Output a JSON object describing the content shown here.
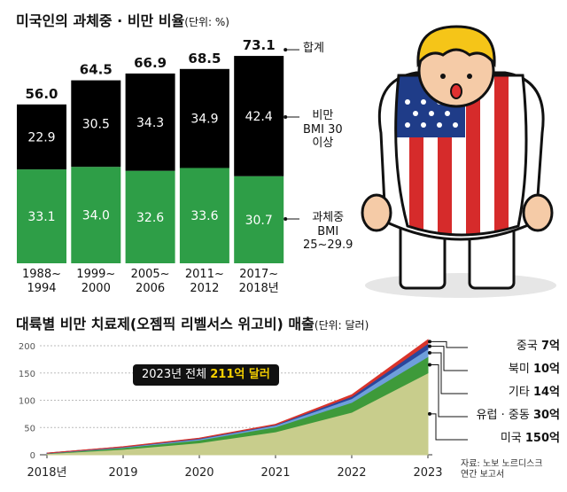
{
  "chart_data": [
    {
      "type": "bar",
      "stacked": true,
      "title": "미국인의 과체중 · 비만 비율",
      "unit": "(단위: %)",
      "categories": [
        "1988~\n1994",
        "1999~\n2000",
        "2005~\n2006",
        "2011~\n2012",
        "2017~\n2018년"
      ],
      "series": [
        {
          "name": "과체중\nBMI\n25~29.9",
          "color": "#2e9e47",
          "values": [
            33.1,
            34.0,
            32.6,
            33.6,
            30.7
          ],
          "value_labels": [
            "33.1",
            "34.0",
            "32.6",
            "33.6",
            "30.7"
          ]
        },
        {
          "name": "비만\nBMI 30\n이상",
          "color": "#000000",
          "values": [
            22.9,
            30.5,
            34.3,
            34.9,
            42.4
          ],
          "value_labels": [
            "22.9",
            "30.5",
            "34.3",
            "34.9",
            "42.4"
          ]
        }
      ],
      "totals": {
        "name": "합계",
        "values": [
          56.0,
          64.5,
          66.9,
          68.5,
          73.1
        ],
        "value_labels": [
          "56.0",
          "64.5",
          "66.9",
          "68.5",
          "73.1"
        ]
      }
    },
    {
      "type": "area",
      "stacked": true,
      "title": "대륙별 비만 치료제(오젬픽 리벨서스 위고비) 매출",
      "unit": "(단위: 달러)",
      "x": [
        2018,
        2019,
        2020,
        2021,
        2022,
        2023
      ],
      "xlim": [
        2018,
        2023
      ],
      "xticks": [
        {
          "value": 2018,
          "label": "2018년"
        },
        2019,
        2020,
        2021,
        2022,
        2023
      ],
      "ylim": [
        0,
        200
      ],
      "yticks": [
        0,
        50,
        100,
        150,
        200
      ],
      "grid": true,
      "series": [
        {
          "name": "미국",
          "color": "#c8cd8c",
          "values": [
            2,
            10,
            22,
            42,
            78,
            150
          ],
          "value_labels": [
            null,
            null,
            null,
            null,
            null,
            "150억"
          ]
        },
        {
          "name": "유럽 · 중동",
          "color": "#3e9a3a",
          "values": [
            0.5,
            3,
            5,
            9,
            18,
            30
          ],
          "value_labels": [
            null,
            null,
            null,
            null,
            null,
            "30억"
          ]
        },
        {
          "name": "기타",
          "color": "#6e9fdb",
          "values": [
            0.3,
            1,
            2,
            3,
            7,
            14
          ],
          "value_labels": [
            null,
            null,
            null,
            null,
            null,
            "14억"
          ]
        },
        {
          "name": "북미",
          "color": "#2a479c",
          "values": [
            0.2,
            0.5,
            1,
            1,
            4,
            10
          ],
          "value_labels": [
            null,
            null,
            null,
            null,
            null,
            "10억"
          ]
        },
        {
          "name": "중국",
          "color": "#d9342b",
          "values": [
            0,
            0.3,
            0.5,
            1,
            3,
            7
          ],
          "value_labels": [
            null,
            null,
            null,
            null,
            null,
            "7억"
          ]
        }
      ],
      "annotation": {
        "text": "2023년 전체",
        "highlight": "211억 달러"
      },
      "source": "자료: 노보 노르디스크\n연간 보고서"
    }
  ]
}
